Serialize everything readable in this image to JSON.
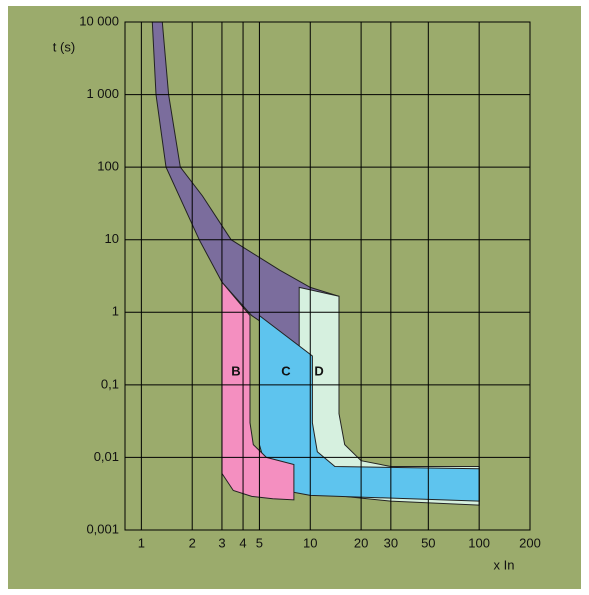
{
  "chart_data": {
    "type": "area",
    "y_label": "t (s)",
    "x_label": "x In",
    "xscale": "log",
    "yscale": "log",
    "background": "#9bab6c",
    "grid": true,
    "xlim": [
      0.8,
      200
    ],
    "ylim": [
      0.001,
      10000
    ],
    "xticks": [
      1,
      2,
      3,
      4,
      5,
      10,
      20,
      30,
      50,
      100,
      200
    ],
    "yticks": [
      {
        "value": 10000,
        "label": "10 000"
      },
      {
        "value": 1000,
        "label": "1 000"
      },
      100,
      10,
      1,
      {
        "value": 0.1,
        "label": "0,1"
      },
      {
        "value": 0.01,
        "label": "0,01"
      },
      {
        "value": 0.001,
        "label": "0,001"
      }
    ],
    "series": [
      {
        "color": "#7b6d9d",
        "x": [
          1.16,
          1.22,
          1.4,
          2.2,
          3,
          4.5,
          7,
          10.3,
          14.8,
          10,
          6.6,
          3.4,
          2.3,
          1.7,
          1.45,
          1.33
        ],
        "values": [
          10000,
          1000,
          100,
          10,
          2.6,
          0.9,
          0.45,
          0.25,
          1.66,
          2.2,
          3.8,
          10,
          40,
          100,
          1000,
          10000
        ]
      },
      {
        "name": "D",
        "color": "#d6f0df",
        "x": [
          8.6,
          8.6,
          9.5,
          11,
          14,
          30,
          100,
          100,
          30,
          20,
          16,
          14.8,
          14.8
        ],
        "values": [
          2.2,
          0.024,
          0.007,
          0.0042,
          0.003,
          0.0025,
          0.0022,
          0.0075,
          0.0075,
          0.009,
          0.015,
          0.04,
          1.66
        ]
      },
      {
        "name": "C",
        "color": "#5ec4ee",
        "x": [
          5,
          5,
          5.6,
          7,
          10,
          100,
          100,
          14,
          11,
          10.3,
          10.3
        ],
        "values": [
          0.9,
          0.015,
          0.006,
          0.0035,
          0.003,
          0.0025,
          0.007,
          0.0075,
          0.012,
          0.03,
          0.25
        ]
      },
      {
        "name": "B",
        "color": "#f48fc0",
        "x": [
          3,
          3,
          3.5,
          4.5,
          6,
          8,
          8,
          5.5,
          4.6,
          4.4,
          4.4
        ],
        "values": [
          2.6,
          0.006,
          0.0035,
          0.0029,
          0.0027,
          0.0026,
          0.008,
          0.01,
          0.015,
          0.03,
          0.9
        ]
      }
    ]
  }
}
